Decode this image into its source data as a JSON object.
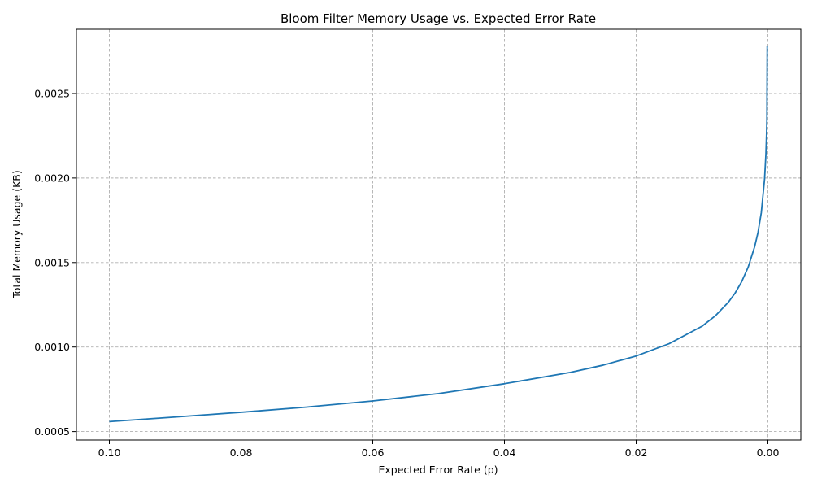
{
  "chart_data": {
    "type": "line",
    "title": "Bloom Filter Memory Usage vs. Expected Error Rate",
    "xlabel": "Expected Error Rate (p)",
    "ylabel": "Total Memory Usage (KB)",
    "xlim": [
      0.105,
      -0.005
    ],
    "ylim": [
      0.00045,
      0.00288
    ],
    "x_reversed": true,
    "grid": true,
    "x_ticks": [
      0.1,
      0.08,
      0.06,
      0.04,
      0.02,
      0.0
    ],
    "x_tick_labels": [
      "0.10",
      "0.08",
      "0.06",
      "0.04",
      "0.02",
      "0.00"
    ],
    "y_ticks": [
      0.0005,
      0.001,
      0.0015,
      0.002,
      0.0025
    ],
    "y_tick_labels": [
      "0.0005",
      "0.0010",
      "0.0015",
      "0.0020",
      "0.0025"
    ],
    "colors": {
      "line": "#1f77b4",
      "grid": "#b0b0b0"
    },
    "series": [
      {
        "x": [
          0.1,
          0.09,
          0.08,
          0.07,
          0.06,
          0.05,
          0.04,
          0.03,
          0.025,
          0.02,
          0.015,
          0.01,
          0.008,
          0.006,
          0.005,
          0.004,
          0.003,
          0.002,
          0.0015,
          0.001,
          0.0005,
          0.0003,
          0.0002,
          0.00015,
          0.0001
        ],
        "y": [
          0.000559,
          0.000586,
          0.000614,
          0.000645,
          0.000681,
          0.000725,
          0.000783,
          0.00085,
          0.000893,
          0.000947,
          0.00102,
          0.001123,
          0.001184,
          0.001265,
          0.001318,
          0.001385,
          0.001472,
          0.001595,
          0.001678,
          0.001795,
          0.001995,
          0.002141,
          0.002261,
          0.002345,
          0.00278
        ]
      }
    ]
  }
}
